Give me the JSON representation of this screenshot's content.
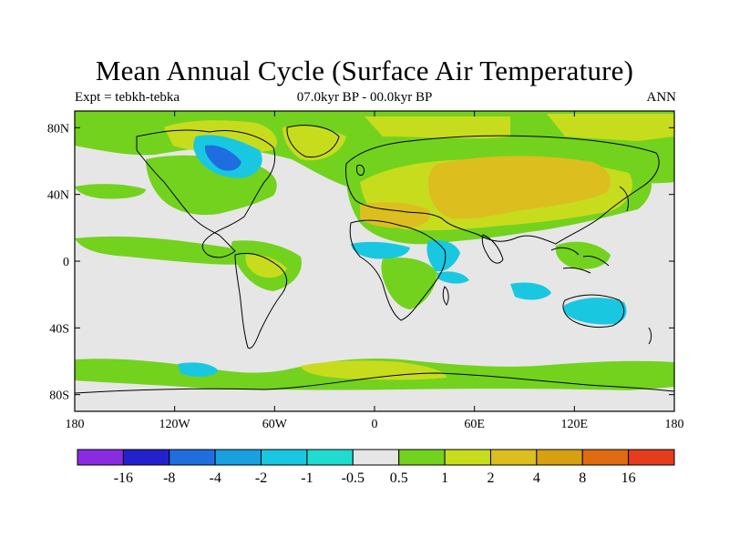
{
  "title": "Mean Annual Cycle (Surface Air Temperature)",
  "subtitle_left": "Expt = tebkh-tebka",
  "subtitle_center": "07.0kyr BP - 00.0kyr BP",
  "subtitle_right": "ANN",
  "lat_ticks": [
    "80N",
    "40N",
    "0",
    "40S",
    "80S"
  ],
  "lat_values": [
    80,
    40,
    0,
    -40,
    -80
  ],
  "lon_ticks": [
    "180",
    "120W",
    "60W",
    "0",
    "60E",
    "120E",
    "180"
  ],
  "lon_values": [
    -180,
    -120,
    -60,
    0,
    60,
    120,
    180
  ],
  "colorbar": {
    "colors": [
      "#8a2be2",
      "#2222cc",
      "#1e6ee0",
      "#19a0e0",
      "#19c8e0",
      "#20dcd0",
      "#e6e6e6",
      "#73d21e",
      "#c8dc1e",
      "#dcbe1e",
      "#d6a010",
      "#e06a10",
      "#e63c1e"
    ],
    "labels": [
      "-16",
      "-8",
      "-4",
      "-2",
      "-1",
      "-0.5",
      "0.5",
      "1",
      "2",
      "4",
      "8",
      "16"
    ]
  },
  "chart_data": {
    "type": "map",
    "projection": "cylindrical equidistant",
    "variable": "Surface Air Temperature anomaly",
    "lon_range": [
      -180,
      180
    ],
    "lat_range": [
      -90,
      90
    ],
    "contour_levels": [
      -16,
      -8,
      -4,
      -2,
      -1,
      -0.5,
      0.5,
      1,
      2,
      4,
      8,
      16
    ]
  }
}
